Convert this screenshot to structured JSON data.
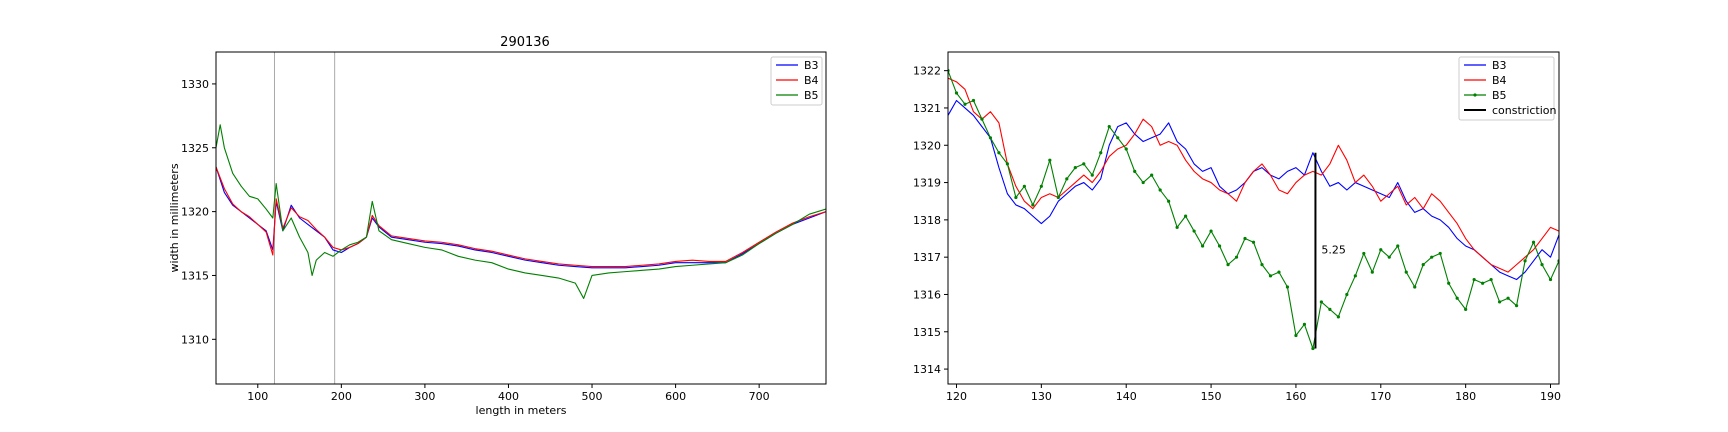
{
  "chart_data": [
    {
      "type": "line",
      "title": "290136",
      "xlabel": "length in meters",
      "ylabel": "width in millimeters",
      "xlim": [
        50,
        780
      ],
      "ylim": [
        1306.5,
        1332.5
      ],
      "xticks": [
        100,
        200,
        300,
        400,
        500,
        600,
        700
      ],
      "yticks": [
        1310,
        1315,
        1320,
        1325,
        1330
      ],
      "vlines": [
        120,
        192
      ],
      "legend_position": "top-right",
      "series": [
        {
          "name": "B3",
          "color": "#0000ff",
          "x": [
            50,
            60,
            70,
            80,
            90,
            100,
            110,
            118,
            122,
            130,
            140,
            150,
            160,
            170,
            180,
            190,
            200,
            210,
            220,
            230,
            237,
            245,
            260,
            280,
            300,
            320,
            340,
            360,
            380,
            400,
            420,
            440,
            460,
            480,
            500,
            520,
            540,
            560,
            580,
            600,
            620,
            640,
            660,
            680,
            700,
            720,
            740,
            760,
            780
          ],
          "y": [
            1323.5,
            1321.5,
            1320.5,
            1320,
            1319.5,
            1319,
            1318.5,
            1317,
            1320.8,
            1318.5,
            1320.5,
            1319.5,
            1319,
            1318.5,
            1318,
            1317,
            1316.8,
            1317.2,
            1317.5,
            1318,
            1319.5,
            1318.8,
            1318,
            1317.8,
            1317.6,
            1317.5,
            1317.3,
            1317,
            1316.8,
            1316.5,
            1316.2,
            1316,
            1315.8,
            1315.7,
            1315.6,
            1315.6,
            1315.6,
            1315.7,
            1315.8,
            1316,
            1316,
            1316,
            1316,
            1316.7,
            1317.5,
            1318.3,
            1319,
            1319.5,
            1320
          ]
        },
        {
          "name": "B4",
          "color": "#ff0000",
          "x": [
            50,
            60,
            70,
            80,
            90,
            100,
            110,
            118,
            122,
            130,
            140,
            150,
            160,
            170,
            180,
            190,
            200,
            210,
            220,
            230,
            237,
            245,
            260,
            280,
            300,
            320,
            340,
            360,
            380,
            400,
            420,
            440,
            460,
            480,
            500,
            520,
            540,
            560,
            580,
            600,
            620,
            640,
            660,
            680,
            700,
            720,
            740,
            760,
            780
          ],
          "y": [
            1323.5,
            1321.8,
            1320.6,
            1320,
            1319.6,
            1319,
            1318.4,
            1316.6,
            1321,
            1318.7,
            1320.3,
            1319.6,
            1319.3,
            1318.6,
            1318,
            1317.2,
            1317,
            1317.2,
            1317.5,
            1318,
            1319.7,
            1318.9,
            1318.1,
            1317.9,
            1317.7,
            1317.6,
            1317.4,
            1317.1,
            1316.9,
            1316.6,
            1316.3,
            1316.1,
            1315.9,
            1315.8,
            1315.7,
            1315.7,
            1315.7,
            1315.8,
            1315.9,
            1316.1,
            1316.2,
            1316.1,
            1316.1,
            1316.8,
            1317.6,
            1318.4,
            1319.1,
            1319.6,
            1320
          ]
        },
        {
          "name": "B5",
          "color": "#008000",
          "x": [
            50,
            55,
            60,
            70,
            80,
            90,
            100,
            110,
            118,
            122,
            130,
            140,
            150,
            160,
            165,
            170,
            180,
            190,
            200,
            210,
            220,
            230,
            237,
            245,
            260,
            280,
            300,
            320,
            340,
            360,
            380,
            400,
            420,
            440,
            460,
            480,
            490,
            500,
            520,
            540,
            560,
            580,
            600,
            620,
            640,
            660,
            680,
            700,
            720,
            740,
            760,
            780
          ],
          "y": [
            1325,
            1326.8,
            1325,
            1323,
            1322,
            1321.2,
            1321,
            1320.2,
            1319.5,
            1322.2,
            1318.5,
            1319.5,
            1318,
            1316.8,
            1315,
            1316.2,
            1316.8,
            1316.5,
            1317,
            1317.4,
            1317.6,
            1318,
            1320.8,
            1318.5,
            1317.8,
            1317.5,
            1317.2,
            1317,
            1316.5,
            1316.2,
            1316,
            1315.5,
            1315.2,
            1315,
            1314.8,
            1314.4,
            1313.2,
            1315,
            1315.2,
            1315.3,
            1315.4,
            1315.5,
            1315.7,
            1315.8,
            1315.9,
            1316,
            1316.6,
            1317.5,
            1318.3,
            1319,
            1319.8,
            1320.2
          ]
        }
      ]
    },
    {
      "type": "line",
      "title": "",
      "xlabel": "",
      "ylabel": "",
      "xlim": [
        119,
        191
      ],
      "ylim": [
        1313.6,
        1322.5
      ],
      "xticks": [
        120,
        130,
        140,
        150,
        160,
        170,
        180,
        190
      ],
      "yticks": [
        1314,
        1315,
        1316,
        1317,
        1318,
        1319,
        1320,
        1321,
        1322
      ],
      "legend_position": "top-right",
      "annotation": {
        "x": 162.3,
        "y_from": 1314.55,
        "y_to": 1319.8,
        "label": "5.25",
        "label_x": 163,
        "label_y": 1317.2,
        "series_name": "constriction",
        "color": "#000000"
      },
      "series": [
        {
          "name": "B3",
          "color": "#0000ff",
          "markers": false,
          "x": [
            119,
            120,
            121,
            122,
            123,
            124,
            125,
            126,
            127,
            128,
            129,
            130,
            131,
            132,
            133,
            134,
            135,
            136,
            137,
            138,
            139,
            140,
            141,
            142,
            143,
            144,
            145,
            146,
            147,
            148,
            149,
            150,
            151,
            152,
            153,
            154,
            155,
            156,
            157,
            158,
            159,
            160,
            161,
            162,
            163,
            164,
            165,
            166,
            167,
            168,
            169,
            170,
            171,
            172,
            173,
            174,
            175,
            176,
            177,
            178,
            179,
            180,
            181,
            182,
            183,
            184,
            185,
            186,
            187,
            188,
            189,
            190,
            191
          ],
          "y": [
            1320.8,
            1321.2,
            1321,
            1320.8,
            1320.5,
            1320.2,
            1319.4,
            1318.7,
            1318.4,
            1318.3,
            1318.1,
            1317.9,
            1318.1,
            1318.5,
            1318.7,
            1318.9,
            1319.0,
            1318.8,
            1319.1,
            1320.0,
            1320.5,
            1320.6,
            1320.3,
            1320.1,
            1320.2,
            1320.3,
            1320.6,
            1320.1,
            1319.9,
            1319.5,
            1319.3,
            1319.4,
            1318.9,
            1318.7,
            1318.8,
            1319.0,
            1319.3,
            1319.4,
            1319.2,
            1319.1,
            1319.3,
            1319.4,
            1319.2,
            1319.8,
            1319.3,
            1318.9,
            1319.0,
            1318.8,
            1319.0,
            1318.9,
            1318.8,
            1318.7,
            1318.6,
            1319.0,
            1318.5,
            1318.2,
            1318.3,
            1318.1,
            1318.0,
            1317.8,
            1317.5,
            1317.3,
            1317.2,
            1317.0,
            1316.8,
            1316.6,
            1316.5,
            1316.4,
            1316.6,
            1316.9,
            1317.2,
            1317.0,
            1317.6
          ]
        },
        {
          "name": "B4",
          "color": "#ff0000",
          "markers": false,
          "x": [
            119,
            120,
            121,
            122,
            123,
            124,
            125,
            126,
            127,
            128,
            129,
            130,
            131,
            132,
            133,
            134,
            135,
            136,
            137,
            138,
            139,
            140,
            141,
            142,
            143,
            144,
            145,
            146,
            147,
            148,
            149,
            150,
            151,
            152,
            153,
            154,
            155,
            156,
            157,
            158,
            159,
            160,
            161,
            162,
            163,
            164,
            165,
            166,
            167,
            168,
            169,
            170,
            171,
            172,
            173,
            174,
            175,
            176,
            177,
            178,
            179,
            180,
            181,
            182,
            183,
            184,
            185,
            186,
            187,
            188,
            189,
            190,
            191
          ],
          "y": [
            1321.8,
            1321.7,
            1321.5,
            1320.9,
            1320.7,
            1320.9,
            1320.6,
            1319.5,
            1318.9,
            1318.5,
            1318.3,
            1318.6,
            1318.7,
            1318.6,
            1318.8,
            1319.0,
            1319.2,
            1319.0,
            1319.3,
            1319.7,
            1319.9,
            1320.0,
            1320.3,
            1320.7,
            1320.5,
            1320.0,
            1320.1,
            1320.0,
            1319.6,
            1319.3,
            1319.1,
            1319.0,
            1318.8,
            1318.7,
            1318.5,
            1319.0,
            1319.3,
            1319.5,
            1319.2,
            1318.8,
            1318.7,
            1319.0,
            1319.2,
            1319.3,
            1319.2,
            1319.5,
            1320.0,
            1319.6,
            1319.0,
            1319.2,
            1318.9,
            1318.5,
            1318.7,
            1318.9,
            1318.4,
            1318.6,
            1318.3,
            1318.7,
            1318.5,
            1318.2,
            1317.9,
            1317.5,
            1317.2,
            1317.0,
            1316.8,
            1316.7,
            1316.6,
            1316.8,
            1317.0,
            1317.2,
            1317.5,
            1317.8,
            1317.7
          ]
        },
        {
          "name": "B5",
          "color": "#008000",
          "markers": true,
          "x": [
            119,
            120,
            121,
            122,
            123,
            124,
            125,
            126,
            127,
            128,
            129,
            130,
            131,
            132,
            133,
            134,
            135,
            136,
            137,
            138,
            139,
            140,
            141,
            142,
            143,
            144,
            145,
            146,
            147,
            148,
            149,
            150,
            151,
            152,
            153,
            154,
            155,
            156,
            157,
            158,
            159,
            160,
            161,
            162,
            163,
            164,
            165,
            166,
            167,
            168,
            169,
            170,
            171,
            172,
            173,
            174,
            175,
            176,
            177,
            178,
            179,
            180,
            181,
            182,
            183,
            184,
            185,
            186,
            187,
            188,
            189,
            190,
            191
          ],
          "y": [
            1322.0,
            1321.4,
            1321.1,
            1321.2,
            1320.7,
            1320.2,
            1319.8,
            1319.5,
            1318.6,
            1318.9,
            1318.4,
            1318.9,
            1319.6,
            1318.6,
            1319.1,
            1319.4,
            1319.5,
            1319.2,
            1319.8,
            1320.5,
            1320.2,
            1319.9,
            1319.3,
            1319.0,
            1319.2,
            1318.8,
            1318.5,
            1317.8,
            1318.1,
            1317.7,
            1317.3,
            1317.7,
            1317.3,
            1316.8,
            1317.0,
            1317.5,
            1317.4,
            1316.8,
            1316.5,
            1316.6,
            1316.2,
            1314.9,
            1315.2,
            1314.55,
            1315.8,
            1315.6,
            1315.4,
            1316.0,
            1316.5,
            1317.1,
            1316.6,
            1317.2,
            1317.0,
            1317.3,
            1316.6,
            1316.2,
            1316.8,
            1317.0,
            1317.1,
            1316.3,
            1315.9,
            1315.6,
            1316.4,
            1316.3,
            1316.4,
            1315.8,
            1315.9,
            1315.7,
            1316.9,
            1317.4,
            1316.8,
            1316.4,
            1316.9
          ]
        }
      ]
    }
  ]
}
